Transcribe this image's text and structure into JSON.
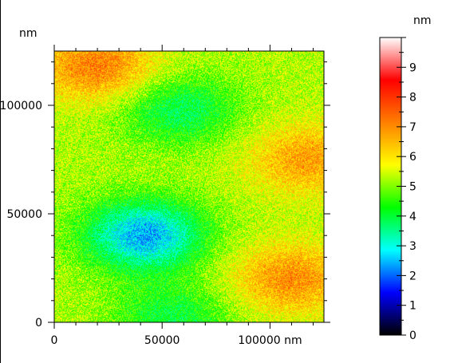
{
  "chart_data": {
    "type": "heatmap",
    "title": "",
    "xlabel": "",
    "ylabel": "",
    "x_unit": "nm",
    "y_unit": "nm",
    "xlim": [
      0,
      125000
    ],
    "ylim": [
      0,
      125000
    ],
    "x_ticks": [
      {
        "value": 0,
        "label": "0"
      },
      {
        "value": 50000,
        "label": "50000"
      },
      {
        "value": 100000,
        "label": "100000 nm"
      }
    ],
    "y_ticks": [
      {
        "value": 0,
        "label": "0"
      },
      {
        "value": 50000,
        "label": "50000"
      },
      {
        "value": 100000,
        "label": "100000"
      }
    ],
    "y_unit_label": "nm",
    "colorbar": {
      "unit": "nm",
      "range": [
        0,
        10
      ],
      "ticks": [
        "0",
        "1",
        "2",
        "3",
        "4",
        "5",
        "6",
        "7",
        "8",
        "9"
      ],
      "colormap": [
        "#000000",
        "#0000ff",
        "#00ffff",
        "#00ff00",
        "#ffff00",
        "#ff8000",
        "#ff0000",
        "#ffffff"
      ]
    },
    "features": [
      {
        "kind": "high",
        "x": 20000,
        "y": 118000,
        "height_nm": 7.2
      },
      {
        "kind": "low",
        "x": 58000,
        "y": 98000,
        "height_nm": 3.8
      },
      {
        "kind": "low",
        "x": 42000,
        "y": 40000,
        "height_nm": 2.4
      },
      {
        "kind": "high",
        "x": 118000,
        "y": 75000,
        "height_nm": 6.8
      },
      {
        "kind": "high",
        "x": 110000,
        "y": 20000,
        "height_nm": 7.0
      },
      {
        "kind": "low",
        "x": 55000,
        "y": 2000,
        "height_nm": 4.0
      }
    ],
    "baseline_height_nm": 5.3
  }
}
